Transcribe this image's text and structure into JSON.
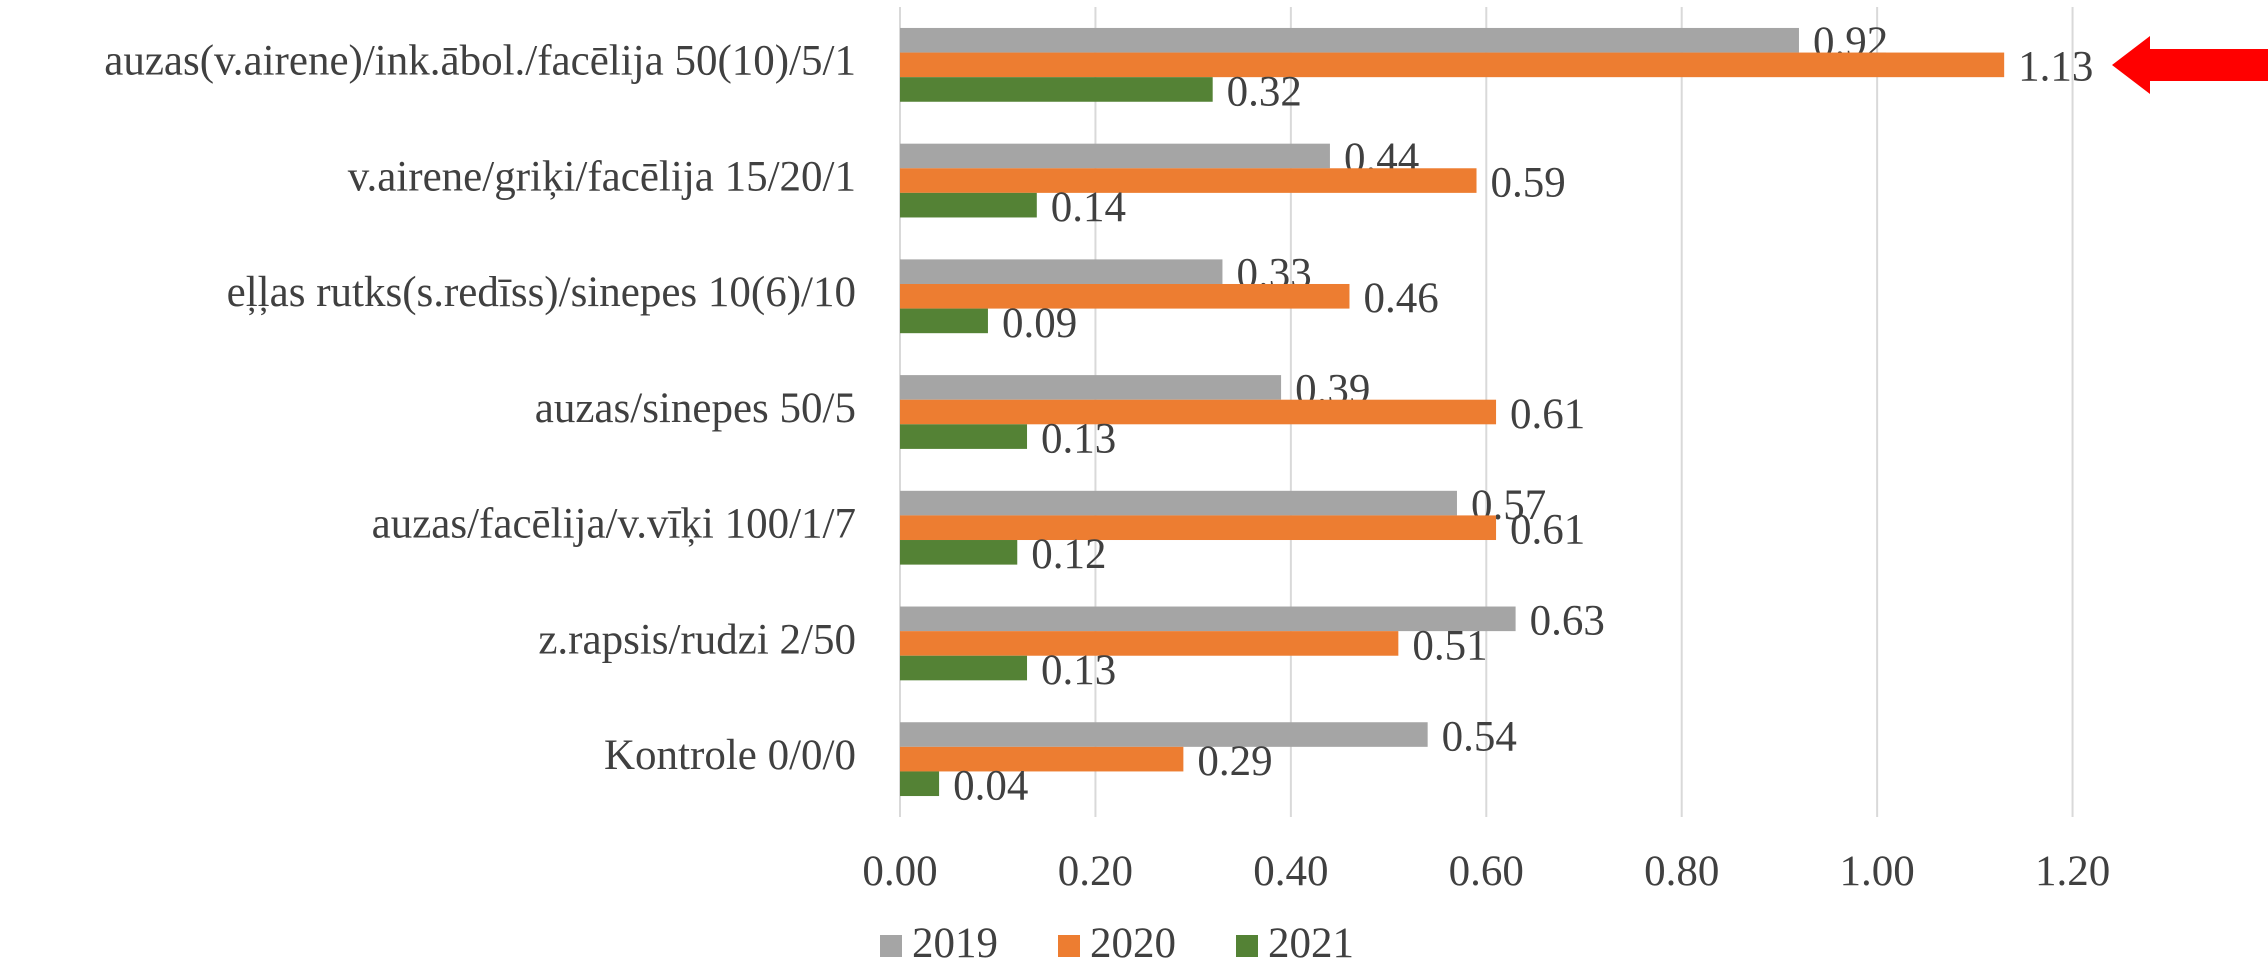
{
  "chart_data": {
    "type": "bar",
    "orientation": "horizontal",
    "categories": [
      "auzas(v.airene)/ink.ābol./facēlija 50(10)/5/1",
      "v.airene/griķi/facēlija  15/20/1",
      "eļļas rutks(s.redīss)/sinepes  10(6)/10",
      "auzas/sinepes  50/5",
      "auzas/facēlija/v.vīķi 100/1/7",
      "z.rapsis/rudzi 2/50",
      "Kontrole   0/0/0"
    ],
    "series": [
      {
        "name": "2019",
        "color": "#a5a5a5",
        "values": [
          0.92,
          0.44,
          0.33,
          0.39,
          0.57,
          0.63,
          0.54
        ]
      },
      {
        "name": "2020",
        "color": "#ed7d31",
        "values": [
          1.13,
          0.59,
          0.46,
          0.61,
          0.61,
          0.51,
          0.29
        ]
      },
      {
        "name": "2021",
        "color": "#548235",
        "values": [
          0.32,
          0.14,
          0.09,
          0.13,
          0.12,
          0.13,
          0.04
        ]
      }
    ],
    "xlim": [
      0,
      1.4
    ],
    "xticks": [
      {
        "value": 0,
        "label": "0.00"
      },
      {
        "value": 0.2,
        "label": "0.20"
      },
      {
        "value": 0.4,
        "label": "0.40"
      },
      {
        "value": 0.6,
        "label": "0.60"
      },
      {
        "value": 0.8,
        "label": "0.80"
      },
      {
        "value": 1.0,
        "label": "1.00"
      },
      {
        "value": 1.2,
        "label": "1.20"
      }
    ],
    "grid": true,
    "legend": "bottom"
  }
}
